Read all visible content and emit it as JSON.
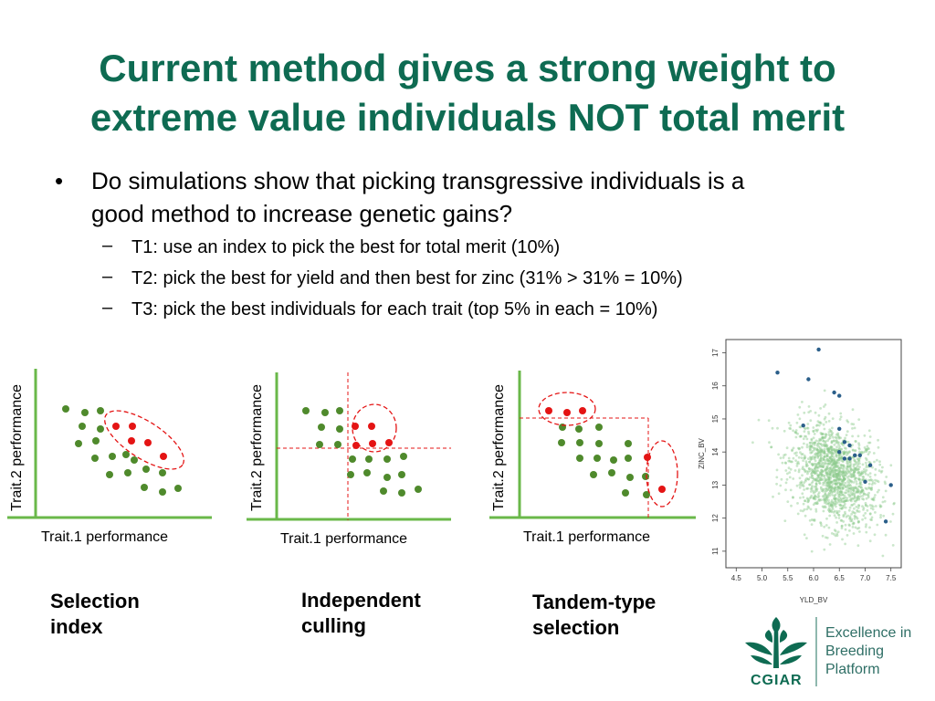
{
  "title": {
    "line1": "Current method gives a strong weight to",
    "line2": "extreme value individuals NOT total merit"
  },
  "bullet": {
    "symbol": "•",
    "text_line1": "Do simulations show that picking transgressive individuals is a",
    "text_line2": "good method to increase genetic gains?",
    "dash": "–",
    "subs": [
      "T1: use an index to pick the best for total merit (10%)",
      "T2: pick the best for yield and then best for zinc (31% > 31% = 10%)",
      "T3: pick the best individuals for each trait (top 5% in each = 10%)"
    ]
  },
  "diagrams": {
    "ylabel": "Trait.2 performance",
    "xlabel": "Trait.1 performance",
    "captions": [
      {
        "line1": "Selection",
        "line2": "index"
      },
      {
        "line1": "Independent",
        "line2": "culling"
      },
      {
        "line1": "Tandem-type",
        "line2": "selection"
      }
    ],
    "colors": {
      "green_dot": "#4f8a2c",
      "red_dot": "#e41414",
      "axis": "#6ab84a",
      "selection": "#e41414"
    }
  },
  "chart_data": {
    "type": "scatter",
    "xlabel": "YLD_BV",
    "ylabel": "ZINC_BV",
    "xlim": [
      4.3,
      7.7
    ],
    "ylim": [
      10.5,
      17.4
    ],
    "x_ticks": [
      "4.5",
      "5.0",
      "5.5",
      "6.0",
      "6.5",
      "7.0",
      "7.5"
    ],
    "y_ticks": [
      "11",
      "12",
      "13",
      "14",
      "15",
      "16",
      "17"
    ],
    "grid": false,
    "series": [
      {
        "marker": "small-translucent-green",
        "color": "#8cc98c",
        "note_points": "dense cloud of approx. 1500 candidates, centered near YLD 6.5, ZINC 13.2"
      },
      {
        "marker": "dark-blue-dot",
        "color": "#2b5f8a",
        "points": [
          [
            6.1,
            17.1
          ],
          [
            5.3,
            16.4
          ],
          [
            5.9,
            16.2
          ],
          [
            6.4,
            15.8
          ],
          [
            6.5,
            15.7
          ],
          [
            5.8,
            14.8
          ],
          [
            6.5,
            14.7
          ],
          [
            6.6,
            14.3
          ],
          [
            6.7,
            14.2
          ],
          [
            6.5,
            14.0
          ],
          [
            6.8,
            13.9
          ],
          [
            6.9,
            13.9
          ],
          [
            6.6,
            13.8
          ],
          [
            6.7,
            13.8
          ],
          [
            7.1,
            13.6
          ],
          [
            7.0,
            13.1
          ],
          [
            7.5,
            13.0
          ],
          [
            7.4,
            11.9
          ]
        ]
      }
    ]
  },
  "logo": {
    "name": "CGIAR",
    "line1": "Excellence in",
    "line2": "Breeding",
    "line3": "Platform",
    "color": "#0e6b52"
  }
}
